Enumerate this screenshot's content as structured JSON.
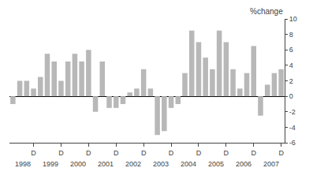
{
  "chart_data": {
    "type": "bar",
    "ylabel": "%change",
    "categories": [
      null,
      null,
      null,
      "D",
      null,
      null,
      null,
      "D",
      null,
      null,
      null,
      "D",
      null,
      null,
      null,
      "D",
      null,
      null,
      null,
      "D",
      null,
      null,
      null,
      "D",
      null,
      null,
      null,
      "D",
      null,
      null,
      null,
      "D",
      null,
      null,
      null,
      "D",
      null,
      null,
      null,
      "D"
    ],
    "values": [
      -1.0,
      2.0,
      2.0,
      1.0,
      2.5,
      5.5,
      4.5,
      2.0,
      4.5,
      5.5,
      4.5,
      6.0,
      -2.0,
      4.5,
      -1.5,
      -1.5,
      -1.0,
      0.5,
      1.0,
      3.5,
      1.0,
      -5.0,
      -4.5,
      -1.5,
      -1.0,
      3.0,
      8.5,
      7.0,
      5.0,
      3.5,
      8.5,
      7.0,
      3.5,
      1.0,
      3.0,
      6.5,
      -2.5,
      1.5,
      3.0,
      3.5
    ],
    "annotations": [
      "1998",
      "1999",
      "2000",
      "2001",
      "2002",
      "2003",
      "2004",
      "2005",
      "2006",
      "2007"
    ],
    "color": "#b8b8b8",
    "ylim": [
      -6,
      10
    ],
    "yticks": [
      -6,
      -4,
      -2,
      0,
      2,
      4,
      6,
      8,
      10
    ],
    "grid": false
  }
}
